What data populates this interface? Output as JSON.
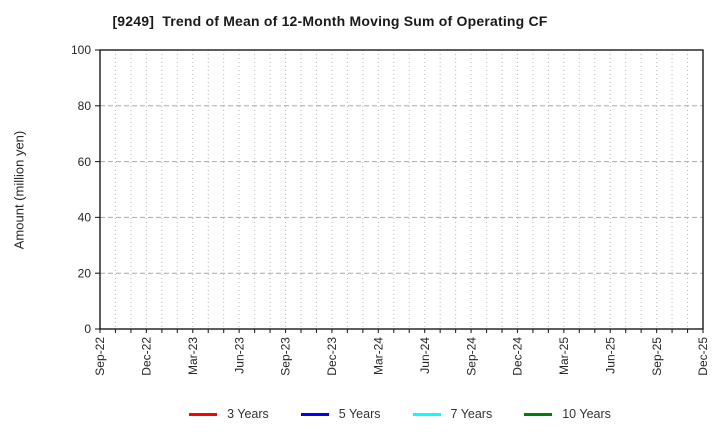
{
  "chart_data": {
    "type": "line",
    "title": "[9249]  Trend of Mean of 12-Month Moving Sum of Operating CF",
    "ylabel": "Amount (million yen)",
    "y_axis": {
      "range": [
        0,
        100
      ],
      "ticks": [
        0,
        20,
        40,
        60,
        80,
        100
      ]
    },
    "x_axis": {
      "tick_labels": [
        "Sep-22",
        "Dec-22",
        "Mar-23",
        "Jun-23",
        "Sep-23",
        "Dec-23",
        "Mar-24",
        "Jun-24",
        "Sep-24",
        "Dec-24",
        "Mar-25",
        "Jun-25",
        "Sep-25",
        "Dec-25"
      ],
      "label_interval_months": 3,
      "monthly_positions": 40,
      "tick_label_rotation_deg": 90
    },
    "grid": {
      "vertical": "dotted, one per month",
      "horizontal": "dashed, at labeled y ticks"
    },
    "legend": {
      "position": "bottom-center"
    },
    "series": [
      {
        "name": "3 Years",
        "color": "#ff0000",
        "values": []
      },
      {
        "name": "5 Years",
        "color": "#0000ff",
        "values": []
      },
      {
        "name": "7 Years",
        "color": "#00ffff",
        "values": []
      },
      {
        "name": "10 Years",
        "color": "#008000",
        "values": []
      }
    ]
  }
}
